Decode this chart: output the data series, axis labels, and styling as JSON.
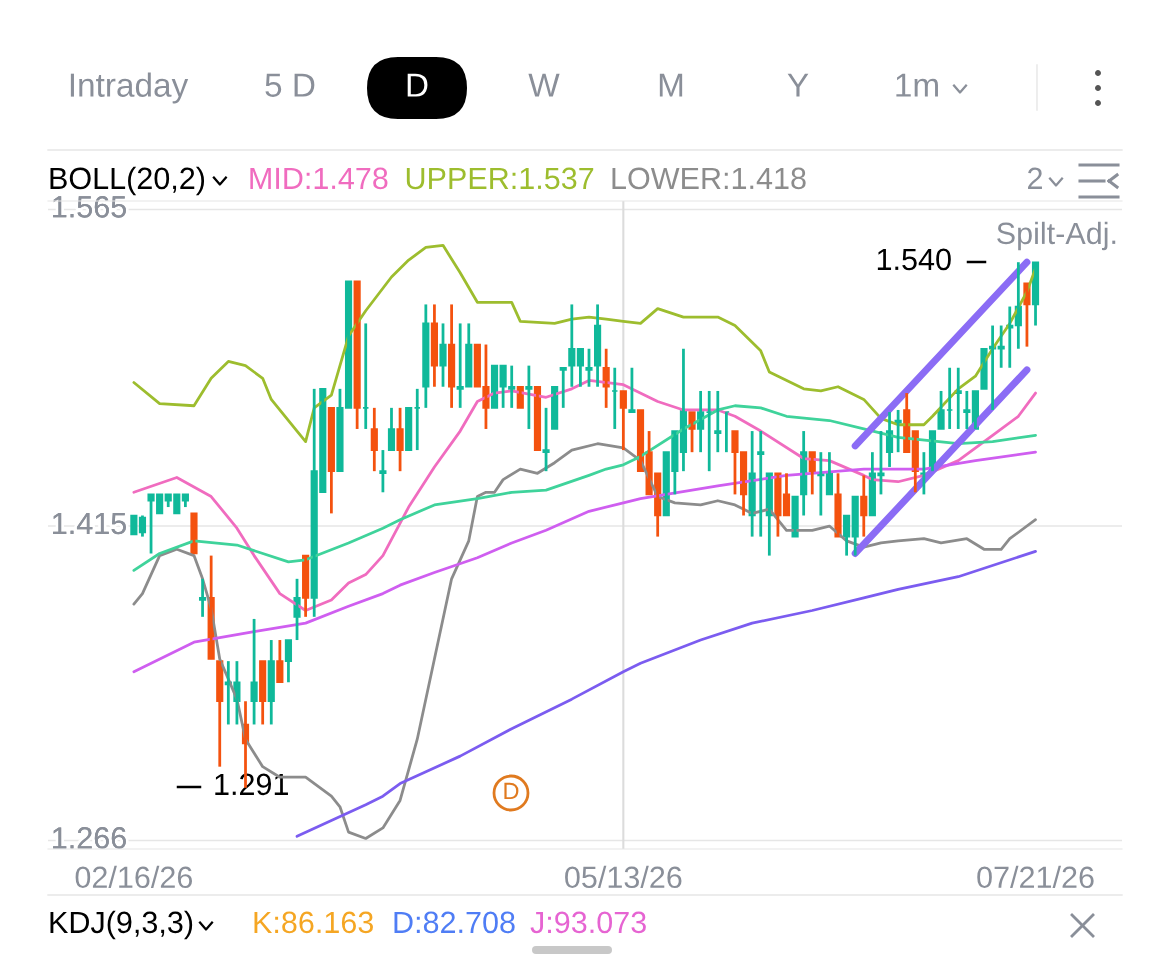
{
  "chart_data": {
    "type": "candlestick",
    "title": "BOLL(20,2)",
    "categories": [
      "02/16/26",
      null,
      null,
      null,
      null,
      null,
      null,
      null,
      null,
      null,
      null,
      null,
      null,
      null,
      null,
      null,
      null,
      null,
      null,
      null,
      null,
      null,
      null,
      null,
      null,
      null,
      null,
      null,
      null,
      null,
      null,
      null,
      null,
      null,
      null,
      null,
      null,
      null,
      null,
      null,
      null,
      null,
      null,
      null,
      null,
      null,
      null,
      null,
      null,
      null,
      null,
      null,
      null,
      null,
      null,
      null,
      null,
      "05/13/26",
      null,
      null,
      null,
      null,
      null,
      null,
      null,
      null,
      null,
      null,
      null,
      null,
      null,
      null,
      null,
      null,
      null,
      null,
      null,
      null,
      null,
      null,
      null,
      null,
      null,
      null,
      null,
      null,
      null,
      null,
      null,
      null,
      null,
      null,
      null,
      null,
      null,
      null,
      null,
      null,
      null,
      null,
      null,
      null,
      null,
      null,
      null,
      "07/21/26"
    ],
    "ohlc": [
      [
        1.411,
        1.42,
        1.411,
        1.42
      ],
      [
        1.412,
        1.42,
        1.41,
        1.419
      ],
      [
        1.427,
        1.43,
        1.402,
        1.43
      ],
      [
        1.421,
        1.43,
        1.421,
        1.43
      ],
      [
        1.427,
        1.43,
        1.424,
        1.43
      ],
      [
        1.421,
        1.43,
        1.421,
        1.43
      ],
      [
        1.427,
        1.43,
        1.424,
        1.43
      ],
      [
        1.421,
        1.421,
        1.402,
        1.402
      ],
      [
        1.38,
        1.39,
        1.372,
        1.381
      ],
      [
        1.381,
        1.401,
        1.352,
        1.352
      ],
      [
        1.351,
        1.351,
        1.301,
        1.332
      ],
      [
        1.34,
        1.351,
        1.321,
        1.341
      ],
      [
        1.332,
        1.351,
        1.321,
        1.341
      ],
      [
        1.321,
        1.332,
        1.291,
        1.312
      ],
      [
        1.332,
        1.371,
        1.321,
        1.341
      ],
      [
        1.351,
        1.351,
        1.321,
        1.332
      ],
      [
        1.332,
        1.361,
        1.321,
        1.351
      ],
      [
        1.351,
        1.361,
        1.341,
        1.341
      ],
      [
        1.351,
        1.361,
        1.341,
        1.361
      ],
      [
        1.372,
        1.39,
        1.361,
        1.381
      ],
      [
        1.401,
        1.401,
        1.372,
        1.381
      ],
      [
        1.381,
        1.48,
        1.372,
        1.441
      ],
      [
        1.431,
        1.48,
        1.431,
        1.48
      ],
      [
        1.471,
        1.471,
        1.421,
        1.441
      ],
      [
        1.441,
        1.48,
        1.441,
        1.471
      ],
      [
        1.471,
        1.531,
        1.471,
        1.531
      ],
      [
        1.531,
        1.531,
        1.461,
        1.471
      ],
      [
        1.471,
        1.511,
        1.461,
        1.471
      ],
      [
        1.461,
        1.471,
        1.441,
        1.451
      ],
      [
        1.44,
        1.451,
        1.431,
        1.441
      ],
      [
        1.451,
        1.471,
        1.451,
        1.461
      ],
      [
        1.461,
        1.471,
        1.441,
        1.451
      ],
      [
        1.451,
        1.471,
        1.451,
        1.471
      ],
      [
        1.471,
        1.48,
        1.451,
        1.471
      ],
      [
        1.481,
        1.52,
        1.471,
        1.511
      ],
      [
        1.511,
        1.52,
        1.481,
        1.491
      ],
      [
        1.491,
        1.511,
        1.481,
        1.501
      ],
      [
        1.501,
        1.52,
        1.471,
        1.481
      ],
      [
        1.48,
        1.511,
        1.471,
        1.481
      ],
      [
        1.481,
        1.511,
        1.481,
        1.501
      ],
      [
        1.501,
        1.501,
        1.481,
        1.481
      ],
      [
        1.481,
        1.501,
        1.461,
        1.471
      ],
      [
        1.471,
        1.491,
        1.471,
        1.491
      ],
      [
        1.481,
        1.491,
        1.471,
        1.491
      ],
      [
        1.48,
        1.491,
        1.471,
        1.481
      ],
      [
        1.481,
        1.481,
        1.471,
        1.471
      ],
      [
        1.48,
        1.491,
        1.461,
        1.481
      ],
      [
        1.481,
        1.481,
        1.451,
        1.451
      ],
      [
        1.45,
        1.471,
        1.441,
        1.451
      ],
      [
        1.461,
        1.481,
        1.461,
        1.481
      ],
      [
        1.489,
        1.49,
        1.471,
        1.49
      ],
      [
        1.491,
        1.52,
        1.481,
        1.499
      ],
      [
        1.491,
        1.499,
        1.481,
        1.499
      ],
      [
        1.489,
        1.499,
        1.481,
        1.49
      ],
      [
        1.491,
        1.52,
        1.481,
        1.51
      ],
      [
        1.49,
        1.499,
        1.471,
        1.481
      ],
      [
        1.479,
        1.49,
        1.461,
        1.479
      ],
      [
        1.479,
        1.479,
        1.451,
        1.471
      ],
      [
        1.469,
        1.49,
        1.469,
        1.47
      ],
      [
        1.47,
        1.47,
        1.441,
        1.441
      ],
      [
        1.45,
        1.46,
        1.43,
        1.43
      ],
      [
        1.44,
        1.44,
        1.41,
        1.42
      ],
      [
        1.42,
        1.45,
        1.42,
        1.45
      ],
      [
        1.441,
        1.46,
        1.43,
        1.46
      ],
      [
        1.45,
        1.499,
        1.441,
        1.47
      ],
      [
        1.469,
        1.469,
        1.45,
        1.461
      ],
      [
        1.461,
        1.479,
        1.45,
        1.469
      ],
      [
        1.469,
        1.479,
        1.441,
        1.469
      ],
      [
        1.459,
        1.479,
        1.45,
        1.46
      ],
      [
        1.469,
        1.469,
        1.45,
        1.469
      ],
      [
        1.46,
        1.46,
        1.43,
        1.45
      ],
      [
        1.45,
        1.45,
        1.42,
        1.43
      ],
      [
        1.42,
        1.46,
        1.41,
        1.44
      ],
      [
        1.449,
        1.46,
        1.41,
        1.45
      ],
      [
        1.42,
        1.44,
        1.401,
        1.44
      ],
      [
        1.44,
        1.44,
        1.41,
        1.42
      ],
      [
        1.43,
        1.44,
        1.42,
        1.42
      ],
      [
        1.41,
        1.429,
        1.41,
        1.429
      ],
      [
        1.43,
        1.46,
        1.42,
        1.45
      ],
      [
        1.45,
        1.45,
        1.43,
        1.441
      ],
      [
        1.439,
        1.45,
        1.42,
        1.44
      ],
      [
        1.43,
        1.45,
        1.43,
        1.44
      ],
      [
        1.43,
        1.44,
        1.41,
        1.41
      ],
      [
        1.41,
        1.42,
        1.401,
        1.42
      ],
      [
        1.41,
        1.429,
        1.401,
        1.429
      ],
      [
        1.429,
        1.439,
        1.41,
        1.42
      ],
      [
        1.42,
        1.45,
        1.42,
        1.44
      ],
      [
        1.439,
        1.46,
        1.43,
        1.44
      ],
      [
        1.45,
        1.469,
        1.443,
        1.46
      ],
      [
        1.464,
        1.47,
        1.45,
        1.465
      ],
      [
        1.47,
        1.478,
        1.45,
        1.45
      ],
      [
        1.46,
        1.46,
        1.431,
        1.441
      ],
      [
        1.439,
        1.45,
        1.43,
        1.44
      ],
      [
        1.441,
        1.46,
        1.441,
        1.46
      ],
      [
        1.461,
        1.479,
        1.461,
        1.47
      ],
      [
        1.47,
        1.49,
        1.461,
        1.47
      ],
      [
        1.478,
        1.49,
        1.461,
        1.479
      ],
      [
        1.469,
        1.479,
        1.461,
        1.47
      ],
      [
        1.461,
        1.479,
        1.461,
        1.479
      ],
      [
        1.48,
        1.499,
        1.48,
        1.499
      ],
      [
        1.499,
        1.51,
        1.47,
        1.5
      ],
      [
        1.499,
        1.51,
        1.49,
        1.5
      ],
      [
        1.509,
        1.519,
        1.49,
        1.51
      ],
      [
        1.51,
        1.54,
        1.499,
        1.519
      ],
      [
        1.53,
        1.53,
        1.5,
        1.52
      ],
      [
        1.52,
        1.54,
        1.51,
        1.54
      ]
    ],
    "colors": [
      "#10b99a",
      "#10b99a",
      "#10b99a",
      "#10b99a",
      "#10b99a",
      "#10b99a",
      "#10b99a",
      "#f4520f",
      "#10b99a",
      "#f4520f",
      "#f4520f",
      "#10b99a",
      "#10b99a",
      "#f4520f",
      "#10b99a",
      "#f4520f",
      "#10b99a",
      "#f4520f",
      "#10b99a",
      "#10b99a",
      "#f4520f",
      "#10b99a",
      "#10b99a",
      "#f4520f",
      "#10b99a",
      "#10b99a",
      "#f4520f",
      "#10b99a",
      "#f4520f",
      "#10b99a",
      "#10b99a",
      "#f4520f",
      "#10b99a",
      "#10b99a",
      "#10b99a",
      "#f4520f",
      "#10b99a",
      "#f4520f",
      "#10b99a",
      "#10b99a",
      "#f4520f",
      "#f4520f",
      "#10b99a",
      "#10b99a",
      "#10b99a",
      "#f4520f",
      "#10b99a",
      "#f4520f",
      "#10b99a",
      "#10b99a",
      "#10b99a",
      "#10b99a",
      "#10b99a",
      "#10b99a",
      "#10b99a",
      "#f4520f",
      "#10b99a",
      "#f4520f",
      "#10b99a",
      "#f4520f",
      "#f4520f",
      "#f4520f",
      "#10b99a",
      "#10b99a",
      "#10b99a",
      "#f4520f",
      "#10b99a",
      "#10b99a",
      "#10b99a",
      "#10b99a",
      "#f4520f",
      "#f4520f",
      "#10b99a",
      "#10b99a",
      "#10b99a",
      "#f4520f",
      "#f4520f",
      "#10b99a",
      "#10b99a",
      "#f4520f",
      "#10b99a",
      "#10b99a",
      "#f4520f",
      "#10b99a",
      "#10b99a",
      "#f4520f",
      "#10b99a",
      "#10b99a",
      "#10b99a",
      "#10b99a",
      "#f4520f",
      "#f4520f",
      "#10b99a",
      "#10b99a",
      "#10b99a",
      "#10b99a",
      "#10b99a",
      "#10b99a",
      "#10b99a",
      "#10b99a",
      "#10b99a",
      "#10b99a",
      "#10b99a",
      "#10b99a",
      "#f4520f",
      "#10b99a"
    ],
    "series": [
      {
        "type": "line",
        "name": "MID:1.478",
        "color": "#f06cbf",
        "values": [
          1.431,
          null,
          null,
          null,
          null,
          1.438,
          null,
          null,
          null,
          1.429,
          null,
          null,
          1.414,
          null,
          1.401,
          null,
          null,
          1.383,
          null,
          null,
          1.375,
          null,
          null,
          1.38,
          null,
          1.388,
          null,
          1.392,
          null,
          1.401,
          null,
          null,
          1.424,
          null,
          null,
          1.443,
          null,
          null,
          1.46,
          null,
          1.474,
          null,
          1.478,
          null,
          1.479,
          null,
          null,
          null,
          1.476,
          null,
          null,
          1.48,
          null,
          1.484,
          null,
          null,
          null,
          1.482,
          null,
          null,
          null,
          1.474,
          null,
          null,
          1.47,
          null,
          null,
          null,
          1.47,
          null,
          1.467,
          null,
          null,
          1.46,
          null,
          null,
          null,
          null,
          1.447,
          null,
          null,
          1.446,
          null,
          null,
          null,
          1.439,
          1.437,
          null,
          null,
          1.436,
          null,
          null,
          1.439,
          null,
          null,
          null,
          1.446,
          null,
          null,
          null,
          1.458,
          null,
          null,
          1.467,
          null,
          1.478
        ]
      },
      {
        "type": "line",
        "name": "UPPER:1.537",
        "color": "#9dbd2e",
        "values": [
          1.483,
          null,
          null,
          1.473,
          null,
          null,
          null,
          1.472,
          null,
          1.485,
          null,
          1.493,
          null,
          1.491,
          null,
          1.485,
          1.475,
          null,
          null,
          1.46,
          1.455,
          1.471,
          null,
          1.477,
          null,
          1.505,
          null,
          1.517,
          null,
          null,
          1.533,
          null,
          1.541,
          null,
          1.547,
          null,
          1.548,
          null,
          1.535,
          null,
          1.521,
          null,
          null,
          null,
          1.521,
          1.512,
          null,
          null,
          null,
          1.511,
          null,
          1.513,
          null,
          1.514,
          null,
          1.513,
          null,
          1.512,
          null,
          1.511,
          null,
          1.518,
          null,
          null,
          1.514,
          null,
          null,
          null,
          1.514,
          null,
          1.51,
          null,
          null,
          1.498,
          1.488,
          null,
          null,
          null,
          1.48,
          null,
          1.479,
          null,
          1.481,
          null,
          null,
          1.475,
          null,
          1.466,
          null,
          1.463,
          null,
          null,
          1.463,
          1.467,
          null,
          null,
          1.48,
          null,
          1.486,
          null,
          1.499,
          null,
          1.511,
          null,
          1.526,
          1.537
        ]
      },
      {
        "type": "line",
        "name": "LOWER:1.418",
        "color": "#8c8c8c",
        "values": [
          1.378,
          1.383,
          null,
          1.401,
          null,
          1.404,
          null,
          1.401,
          1.39,
          1.376,
          1.352,
          null,
          1.333,
          1.314,
          null,
          1.301,
          null,
          1.296,
          null,
          null,
          1.296,
          null,
          null,
          1.287,
          1.282,
          1.27,
          null,
          1.267,
          null,
          1.272,
          null,
          1.285,
          null,
          1.314,
          null,
          1.352,
          null,
          1.39,
          null,
          1.408,
          1.429,
          1.431,
          1.431,
          1.437,
          null,
          1.442,
          null,
          1.44,
          null,
          1.445,
          null,
          1.451,
          null,
          null,
          1.454,
          null,
          null,
          1.452,
          null,
          1.446,
          null,
          1.429,
          null,
          1.426,
          null,
          null,
          1.425,
          null,
          1.427,
          null,
          1.425,
          null,
          1.421,
          null,
          1.423,
          null,
          1.413,
          null,
          null,
          1.413,
          null,
          1.415,
          null,
          1.408,
          null,
          1.405,
          null,
          1.407,
          null,
          1.408,
          null,
          null,
          1.409,
          null,
          1.407,
          null,
          null,
          1.409,
          null,
          1.404,
          null,
          1.404,
          1.409,
          null,
          null,
          1.418
        ]
      },
      {
        "type": "line",
        "color": "#3fd39b",
        "values": [
          1.394,
          null,
          null,
          1.402,
          null,
          null,
          null,
          1.408,
          null,
          null,
          null,
          null,
          1.406,
          null,
          null,
          null,
          null,
          null,
          1.398,
          null,
          1.399,
          null,
          null,
          null,
          null,
          1.407,
          null,
          null,
          null,
          1.414,
          null,
          1.418,
          null,
          null,
          null,
          1.425,
          null,
          null,
          null,
          null,
          1.428,
          null,
          null,
          null,
          1.431,
          null,
          null,
          null,
          1.432,
          null,
          null,
          null,
          null,
          1.439,
          null,
          1.442,
          null,
          1.444,
          null,
          1.448,
          null,
          null,
          null,
          null,
          1.461,
          null,
          null,
          null,
          1.47,
          null,
          1.472,
          null,
          null,
          1.471,
          null,
          null,
          1.467,
          null,
          null,
          null,
          null,
          1.465,
          null,
          null,
          null,
          1.461,
          null,
          null,
          null,
          1.457,
          null,
          null,
          null,
          null,
          null,
          null,
          1.454,
          null,
          null,
          null,
          1.455,
          null,
          null,
          null,
          null,
          1.458
        ]
      },
      {
        "type": "line",
        "color": "#cf5ef0",
        "values": [
          1.346,
          null,
          null,
          null,
          null,
          null,
          null,
          1.36,
          null,
          null,
          null,
          null,
          null,
          null,
          1.365,
          null,
          null,
          null,
          null,
          null,
          1.369,
          null,
          null,
          null,
          null,
          1.377,
          null,
          null,
          null,
          1.383,
          null,
          1.387,
          null,
          null,
          null,
          1.393,
          null,
          null,
          null,
          null,
          1.4,
          null,
          null,
          null,
          1.407,
          null,
          null,
          null,
          1.413,
          null,
          null,
          null,
          null,
          1.422,
          null,
          null,
          null,
          1.426,
          null,
          1.428,
          null,
          null,
          null,
          null,
          null,
          null,
          null,
          null,
          1.434,
          null,
          null,
          null,
          null,
          null,
          null,
          null,
          1.439,
          null,
          null,
          null,
          null,
          null,
          null,
          null,
          null,
          1.442,
          null,
          null,
          null,
          null,
          null,
          null,
          1.442,
          null,
          null,
          null,
          null,
          null,
          1.446,
          null,
          null,
          null,
          null,
          null,
          null,
          1.45
        ]
      },
      {
        "type": "line",
        "color": "#7b5cf0",
        "values": [
          null,
          null,
          null,
          null,
          null,
          null,
          null,
          null,
          null,
          null,
          null,
          null,
          null,
          null,
          null,
          null,
          null,
          null,
          null,
          1.268,
          null,
          null,
          null,
          null,
          null,
          null,
          null,
          1.283,
          null,
          1.287,
          null,
          1.293,
          null,
          null,
          null,
          null,
          null,
          null,
          1.306,
          null,
          null,
          null,
          null,
          null,
          1.319,
          null,
          null,
          null,
          null,
          null,
          null,
          1.333,
          null,
          null,
          null,
          null,
          null,
          1.346,
          null,
          1.35,
          null,
          null,
          null,
          null,
          null,
          null,
          1.361,
          null,
          null,
          null,
          null,
          null,
          1.369,
          null,
          null,
          null,
          null,
          null,
          null,
          1.375,
          null,
          null,
          null,
          null,
          null,
          1.381,
          null,
          null,
          null,
          1.385,
          null,
          null,
          null,
          null,
          null,
          null,
          1.391,
          null,
          null,
          null,
          null,
          null,
          null,
          null,
          null,
          1.403
        ]
      },
      {
        "type": "line",
        "color": "#8b6cf5",
        "values": [
          null,
          null,
          null,
          null,
          null,
          null,
          null,
          null,
          null,
          null,
          null,
          null,
          null,
          null,
          null,
          null,
          null,
          null,
          null,
          null,
          null,
          null,
          null,
          null,
          null,
          null,
          null,
          null,
          null,
          null,
          null,
          null,
          null,
          null,
          null,
          null,
          null,
          null,
          null,
          null,
          null,
          null,
          null,
          null,
          null,
          null,
          null,
          null,
          null,
          null,
          null,
          null,
          null,
          null,
          null,
          null,
          null,
          null,
          null,
          null,
          null,
          null,
          null,
          null,
          null,
          null,
          null,
          null,
          null,
          null,
          null,
          null,
          null,
          null,
          null,
          null,
          null,
          null,
          null,
          null,
          null,
          null,
          null,
          null,
          1.453,
          null,
          null,
          null,
          null,
          null,
          null,
          null,
          null,
          null,
          null,
          null,
          null,
          null,
          null,
          null,
          null,
          null,
          null,
          null,
          1.54,
          null
        ]
      },
      {
        "type": "line",
        "color": "#8b6cf5",
        "values": [
          null,
          null,
          null,
          null,
          null,
          null,
          null,
          null,
          null,
          null,
          null,
          null,
          null,
          null,
          null,
          null,
          null,
          null,
          null,
          null,
          null,
          null,
          null,
          null,
          null,
          null,
          null,
          null,
          null,
          null,
          null,
          null,
          null,
          null,
          null,
          null,
          null,
          null,
          null,
          null,
          null,
          null,
          null,
          null,
          null,
          null,
          null,
          null,
          null,
          null,
          null,
          null,
          null,
          null,
          null,
          null,
          null,
          null,
          null,
          null,
          null,
          null,
          null,
          null,
          null,
          null,
          null,
          null,
          null,
          null,
          null,
          null,
          null,
          null,
          null,
          null,
          null,
          null,
          null,
          null,
          null,
          null,
          null,
          null,
          1.402,
          null,
          null,
          null,
          null,
          null,
          null,
          null,
          null,
          null,
          null,
          null,
          null,
          null,
          null,
          null,
          null,
          null,
          null,
          null,
          1.489,
          null
        ]
      }
    ],
    "ylim": [
      1.262,
      1.569
    ],
    "yticks": [
      1.266,
      1.415,
      1.565
    ],
    "grid": "y",
    "ref_lines": [
      {
        "axis": "x",
        "value": "05/13/26",
        "color": "#dcdcdc"
      }
    ],
    "annotations": [
      "Intraday",
      "5 D",
      "D",
      "W",
      "M",
      "Y",
      "1m",
      "2",
      "Spilt-Adj.",
      "1.540",
      "1.291",
      "D",
      "KDJ(9,3,3)",
      "K:86.163",
      "D:82.708",
      "J:93.073"
    ]
  }
}
